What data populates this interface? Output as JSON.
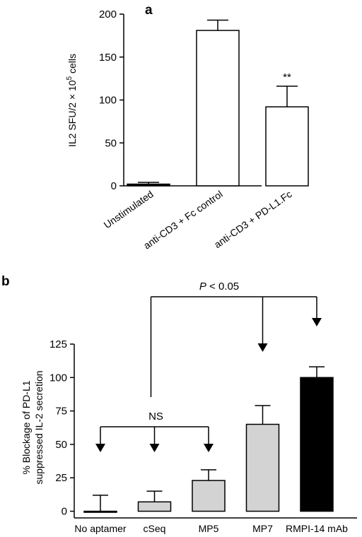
{
  "chart_data": [
    {
      "type": "bar",
      "panel_label": "a",
      "categories": [
        "Unstimulated",
        "anti-CD3 + Fc control",
        "anti-CD3 + PD-L1.Fc"
      ],
      "values": [
        2,
        181,
        92
      ],
      "errors": [
        2,
        12,
        24
      ],
      "bar_colors": [
        "#000000",
        "#ffffff",
        "#ffffff"
      ],
      "ylabel": "IL2 SFU/2 × 10",
      "ylabel_sup": "5",
      "ylabel_suffix": " cells",
      "ylim": [
        0,
        200
      ],
      "yticks": [
        "0",
        "50",
        "100",
        "150",
        "200"
      ],
      "annotations": [
        {
          "category": 2,
          "text": "**"
        }
      ],
      "grid": false
    },
    {
      "type": "bar",
      "panel_label": "b",
      "categories": [
        "No aptamer",
        "cSeq",
        "MP5",
        "MP7",
        "RMPI-14 mAb"
      ],
      "values": [
        0,
        7,
        23,
        65,
        100
      ],
      "errors": [
        12,
        8,
        8,
        14,
        8
      ],
      "bar_colors": [
        "#ffffff",
        "#d3d3d3",
        "#d3d3d3",
        "#d3d3d3",
        "#000000"
      ],
      "ylabel_line1": "% Blockage of PD-L1",
      "ylabel_line2": "suppressed IL-2 secretion",
      "ylim": [
        -5,
        125
      ],
      "yticks": [
        "0",
        "25",
        "50",
        "75",
        "100",
        "125"
      ],
      "brackets": {
        "ns_label": "NS",
        "p_label_italic": "P",
        "p_label_rest": " < 0.05"
      },
      "grid": false
    }
  ]
}
